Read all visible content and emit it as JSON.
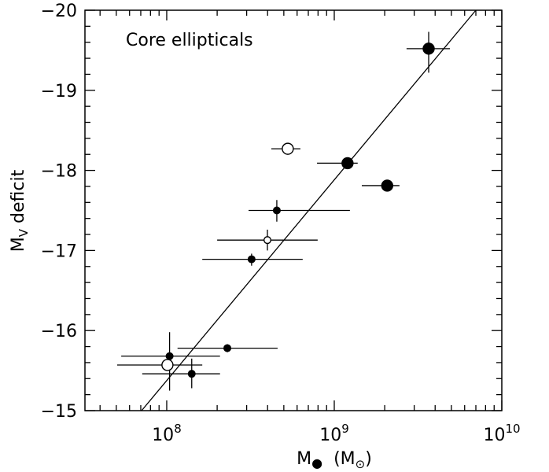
{
  "chart_data": {
    "type": "scatter",
    "annotation": "Core ellipticals",
    "x_label": [
      "M",
      "●",
      "(M",
      "⊙",
      ")"
    ],
    "y_label": [
      "M",
      "V",
      " deficit"
    ],
    "xscale": "log",
    "xlim": [
      32500000,
      10000000000
    ],
    "ylim": [
      -15,
      -20
    ],
    "xticks": [
      {
        "value": 100000000,
        "label": "10",
        "exponent": "8"
      },
      {
        "value": 1000000000,
        "label": "10",
        "exponent": "9"
      },
      {
        "value": 10000000000,
        "label": "10",
        "exponent": "10"
      }
    ],
    "xminorticks": [
      40000000,
      50000000,
      60000000,
      70000000,
      80000000,
      90000000,
      200000000,
      300000000,
      400000000,
      500000000,
      600000000,
      700000000,
      800000000,
      900000000,
      2000000000,
      3000000000,
      4000000000,
      5000000000,
      6000000000,
      7000000000,
      8000000000,
      9000000000
    ],
    "yticks": [
      {
        "value": -15,
        "label": "−15"
      },
      {
        "value": -16,
        "label": "−16"
      },
      {
        "value": -17,
        "label": "−17"
      },
      {
        "value": -18,
        "label": "−18"
      },
      {
        "value": -19,
        "label": "−19"
      },
      {
        "value": -20,
        "label": "−20"
      }
    ],
    "yminorticks": [
      -15.2,
      -15.4,
      -15.6,
      -15.8,
      -16.2,
      -16.4,
      -16.6,
      -16.8,
      -17.2,
      -17.4,
      -17.6,
      -17.8,
      -18.2,
      -18.4,
      -18.6,
      -18.8,
      -19.2,
      -19.4,
      -19.6,
      -19.8
    ],
    "color": "#000000",
    "points": [
      {
        "x": 3660000000,
        "y": -19.52,
        "x_range": [
          2700000000,
          4900000000
        ],
        "y_range": [
          -19.73,
          -19.22
        ],
        "filled": true,
        "size": "large"
      },
      {
        "x": 528000000,
        "y": -18.27,
        "x_range": [
          421000000,
          628000000
        ],
        "y_range": null,
        "filled": false,
        "size": "large"
      },
      {
        "x": 1200000000,
        "y": -18.09,
        "x_range": [
          789000000,
          1380000000
        ],
        "y_range": null,
        "filled": true,
        "size": "large"
      },
      {
        "x": 2070000000,
        "y": -17.81,
        "x_range": [
          1460000000,
          2450000000
        ],
        "y_range": null,
        "filled": true,
        "size": "large"
      },
      {
        "x": 454000000,
        "y": -17.5,
        "x_range": [
          308000000,
          1240000000
        ],
        "y_range": [
          -17.63,
          -17.36
        ],
        "filled": true,
        "size": "small"
      },
      {
        "x": 399000000,
        "y": -17.13,
        "x_range": [
          200000000,
          796000000
        ],
        "y_range": [
          -17.26,
          -17.0
        ],
        "filled": false,
        "size": "small"
      },
      {
        "x": 321000000,
        "y": -16.89,
        "x_range": [
          163000000,
          648000000
        ],
        "y_range": [
          -16.96,
          -16.81
        ],
        "filled": true,
        "size": "small"
      },
      {
        "x": 230000000,
        "y": -15.78,
        "x_range": [
          116000000,
          459000000
        ],
        "y_range": [
          -15.83,
          -15.73
        ],
        "filled": true,
        "size": "small"
      },
      {
        "x": 104000000,
        "y": -15.68,
        "x_range": [
          53500000,
          208000000
        ],
        "y_range": [
          -15.98,
          -15.25
        ],
        "filled": true,
        "size": "small"
      },
      {
        "x": 101000000,
        "y": -15.57,
        "x_range": [
          50600000,
          163000000
        ],
        "y_range": null,
        "filled": false,
        "size": "large"
      },
      {
        "x": 141000000,
        "y": -15.46,
        "x_range": [
          71400000,
          208000000
        ],
        "y_range": [
          -15.65,
          -15.28
        ],
        "filled": true,
        "size": "small"
      }
    ],
    "fit_line": {
      "x": [
        70800000,
        7000000000
      ],
      "y": [
        -15,
        -20
      ]
    }
  }
}
